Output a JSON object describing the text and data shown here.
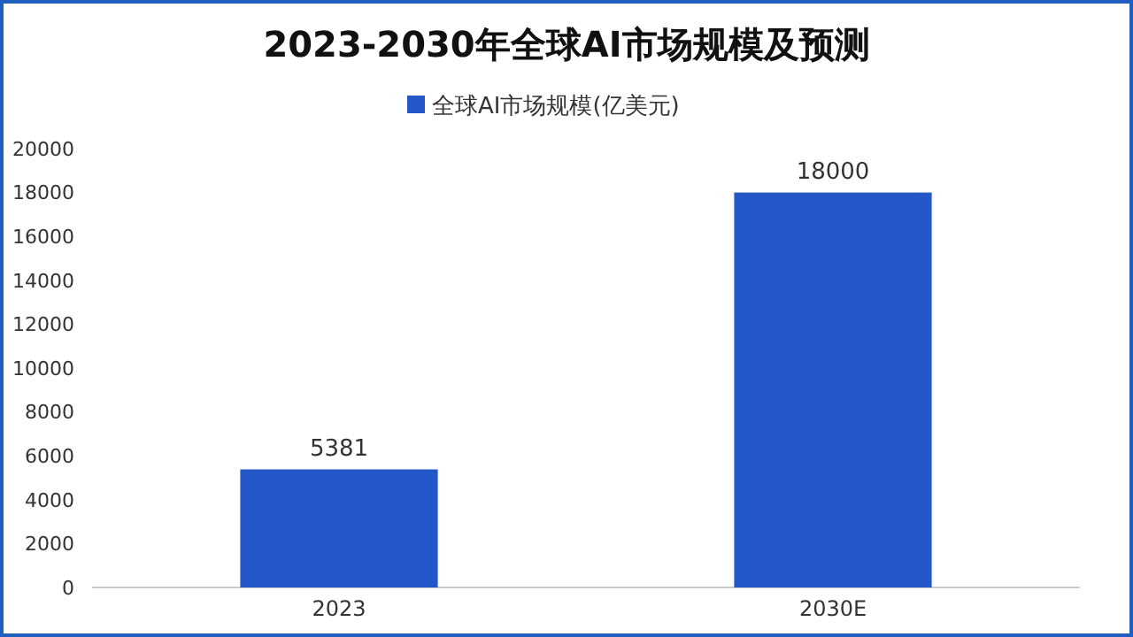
{
  "chart_data": {
    "type": "bar",
    "title": "2023-2030年全球AI市场规模及预测",
    "categories": [
      "2023",
      "2030E"
    ],
    "series": [
      {
        "name": "全球AI市场规模(亿美元)",
        "color": "#2457c8",
        "values": [
          5381,
          18000
        ]
      }
    ],
    "ylim": [
      0,
      20000
    ],
    "yticks": [
      0,
      2000,
      4000,
      6000,
      8000,
      10000,
      12000,
      14000,
      16000,
      18000,
      20000
    ],
    "data_labels": true,
    "legend": "top",
    "grid": false
  }
}
